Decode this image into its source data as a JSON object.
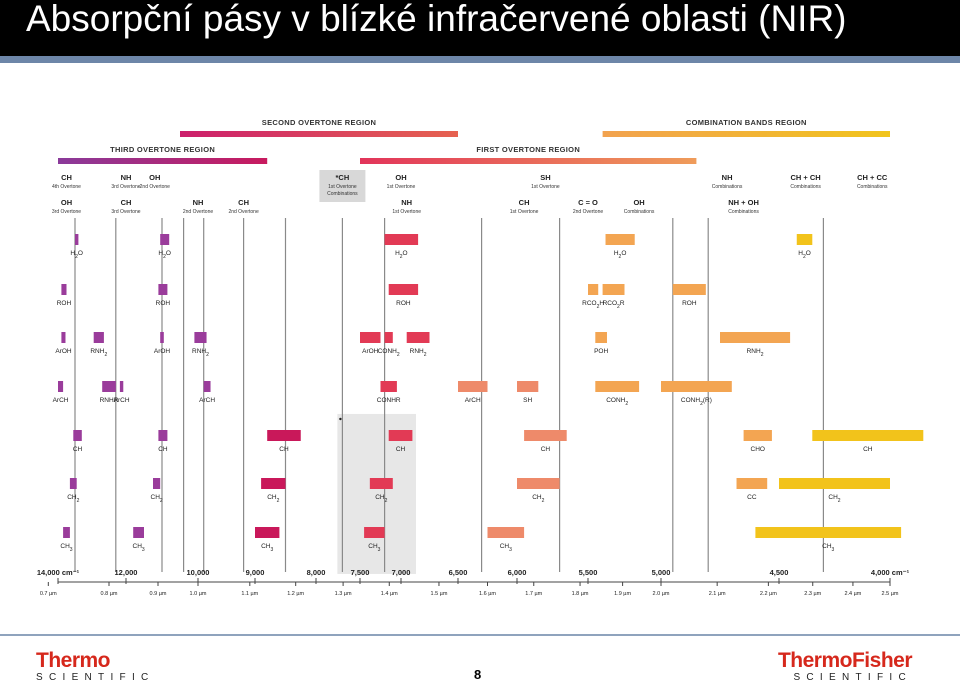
{
  "slide": {
    "title": "Absorpční pásy v blízké infračervené oblasti (NIR)",
    "page_number": "8"
  },
  "logos": {
    "left": {
      "main": "Thermo",
      "sub": "SCIENTIFIC"
    },
    "right": {
      "main": "ThermoFisher",
      "sub": "SCIENTIFIC"
    }
  },
  "colors": {
    "purple": "#9a3c9b",
    "magenta": "#c9185a",
    "red": "#e23a55",
    "salmon": "#ee8a6a",
    "orange": "#f3a552",
    "yellow": "#f2c31b"
  },
  "chart": {
    "type": "band-chart",
    "x_axis": {
      "reversed": true,
      "unit": "cm-1",
      "min": 4000,
      "max": 14000
    },
    "wavenumber_ticks": [
      {
        "v": 14000,
        "label": "14,000 cm⁻¹"
      },
      {
        "v": 12000,
        "label": "12,000"
      },
      {
        "v": 10000,
        "label": "10,000"
      },
      {
        "v": 9000,
        "label": "9,000"
      },
      {
        "v": 8000,
        "label": "8,000"
      },
      {
        "v": 7500,
        "label": "7,500"
      },
      {
        "v": 7000,
        "label": "7,000"
      },
      {
        "v": 6500,
        "label": "6,500"
      },
      {
        "v": 6000,
        "label": "6,000"
      },
      {
        "v": 5500,
        "label": "5,500"
      },
      {
        "v": 5000,
        "label": "5,000"
      },
      {
        "v": 4500,
        "label": "4,500"
      },
      {
        "v": 4000,
        "label": "4,000 cm⁻¹"
      }
    ],
    "wavelength_labels": [
      {
        "v": 14285,
        "label": "0.7 µm"
      },
      {
        "v": 12500,
        "label": "0.8 µm"
      },
      {
        "v": 11111,
        "label": "0.9 µm"
      },
      {
        "v": 10000,
        "label": "1.0 µm"
      },
      {
        "v": 9091,
        "label": "1.1 µm"
      },
      {
        "v": 8333,
        "label": "1.2 µm"
      },
      {
        "v": 7692,
        "label": "1.3 µm"
      },
      {
        "v": 7143,
        "label": "1.4 µm"
      },
      {
        "v": 6667,
        "label": "1.5 µm"
      },
      {
        "v": 6250,
        "label": "1.6 µm"
      },
      {
        "v": 5882,
        "label": "1.7 µm"
      },
      {
        "v": 5556,
        "label": "1.8 µm"
      },
      {
        "v": 5263,
        "label": "1.9 µm"
      },
      {
        "v": 5000,
        "label": "2.0 µm"
      },
      {
        "v": 4762,
        "label": "2.1 µm"
      },
      {
        "v": 4545,
        "label": "2.2 µm"
      },
      {
        "v": 4348,
        "label": "2.3 µm"
      },
      {
        "v": 4167,
        "label": "2.4 µm"
      },
      {
        "v": 4000,
        "label": "2.5 µm"
      }
    ],
    "regions": [
      {
        "label": "SECOND OVERTONE REGION",
        "from": 10500,
        "to": 6500,
        "row": 0,
        "c1": "#cc1f6c",
        "c2": "#e66250"
      },
      {
        "label": "COMBINATION BANDS REGION",
        "from": 5400,
        "to": 4000,
        "row": 0,
        "c1": "#f2a24f",
        "c2": "#f1c41c"
      },
      {
        "label": "THIRD OVERTONE REGION",
        "from": 14000,
        "to": 8800,
        "row": 1,
        "c1": "#8a3a9a",
        "c2": "#c81a5e"
      },
      {
        "label": "FIRST OVERTONE REGION",
        "from": 7500,
        "to": 4850,
        "row": 1,
        "c1": "#e2345a",
        "c2": "#ef9c5a"
      }
    ],
    "band_headers": [
      {
        "v": 13750,
        "row": 0,
        "main": "CH",
        "sub": "4th Overtone"
      },
      {
        "v": 12000,
        "row": 0,
        "main": "NH",
        "sub": "3rd Overtone"
      },
      {
        "v": 11200,
        "row": 0,
        "main": "OH",
        "sub": "2nd Overtone"
      },
      {
        "v": 7700,
        "row": 0,
        "main": "*CH",
        "sub": "1st Overtone",
        "sub2": "Combinations",
        "shaded": true
      },
      {
        "v": 7000,
        "row": 0,
        "main": "OH",
        "sub": "1st Overtone"
      },
      {
        "v": 5800,
        "row": 0,
        "main": "SH",
        "sub": "1st Overtone"
      },
      {
        "v": 4720,
        "row": 0,
        "main": "NH",
        "sub": "Combinations"
      },
      {
        "v": 4380,
        "row": 0,
        "main": "CH + CH",
        "sub": "Combinations"
      },
      {
        "v": 4080,
        "row": 0,
        "main": "CH + CC",
        "sub": "Combinations"
      },
      {
        "v": 13750,
        "row": 1,
        "main": "OH",
        "sub": "3rd Overtone"
      },
      {
        "v": 12000,
        "row": 1,
        "main": "CH",
        "sub": "3rd Overtone"
      },
      {
        "v": 10000,
        "row": 1,
        "main": "NH",
        "sub": "2nd Overtone"
      },
      {
        "v": 9200,
        "row": 1,
        "main": "CH",
        "sub": "2nd Overtone"
      },
      {
        "v": 6950,
        "row": 1,
        "main": "NH",
        "sub": "1st Overtone"
      },
      {
        "v": 5950,
        "row": 1,
        "main": "CH",
        "sub": "1st Overtone"
      },
      {
        "v": 5500,
        "row": 1,
        "main": "C = O",
        "sub": "2nd Overtone"
      },
      {
        "v": 5150,
        "row": 1,
        "main": "OH",
        "sub": "Combinations"
      },
      {
        "v": 4650,
        "row": 1,
        "main": "NH + OH",
        "sub": "Combinations"
      }
    ],
    "vlines": [
      13500,
      12300,
      11000,
      10400,
      9900,
      9200,
      8500,
      7700,
      7200,
      6300,
      5700,
      4950,
      4800,
      4300
    ],
    "shaded_band": {
      "from": 7700,
      "to": 7000,
      "row_from": 4,
      "row_to": 7
    },
    "rows": [
      [
        {
          "f": 13500,
          "t": 13400,
          "c": "purple",
          "l": "H2O"
        },
        {
          "f": 11050,
          "t": 10800,
          "c": "purple",
          "l": "H2O"
        },
        {
          "f": 7200,
          "t": 6850,
          "c": "red",
          "l": "H2O"
        },
        {
          "f": 5380,
          "t": 5180,
          "c": "orange",
          "l": "H2O"
        },
        {
          "f": 4420,
          "t": 4350,
          "c": "yellow",
          "l": "H2O"
        }
      ],
      [
        {
          "f": 13900,
          "t": 13750,
          "c": "purple",
          "l": "ROH"
        },
        {
          "f": 11100,
          "t": 10850,
          "c": "purple",
          "l": "ROH"
        },
        {
          "f": 7150,
          "t": 6850,
          "c": "red",
          "l": "ROH"
        },
        {
          "f": 5500,
          "t": 5430,
          "c": "orange",
          "l": "RCO2H"
        },
        {
          "f": 5400,
          "t": 5250,
          "c": "orange",
          "l": "RCO2R"
        },
        {
          "f": 4950,
          "t": 4810,
          "c": "orange",
          "l": "ROH"
        }
      ],
      [
        {
          "f": 13900,
          "t": 13780,
          "c": "purple",
          "l": "ArOH"
        },
        {
          "f": 12950,
          "t": 12650,
          "c": "purple",
          "l": "RNH2"
        },
        {
          "f": 11050,
          "t": 10950,
          "c": "purple",
          "l": "ArOH"
        },
        {
          "f": 10100,
          "t": 9850,
          "c": "purple",
          "l": "RNH2"
        },
        {
          "f": 7500,
          "t": 7250,
          "c": "red",
          "l": "ArOH"
        },
        {
          "f": 7200,
          "t": 7100,
          "c": "red",
          "l": "CONH2"
        },
        {
          "f": 6950,
          "t": 6750,
          "c": "red",
          "l": "RNH2"
        },
        {
          "f": 5450,
          "t": 5370,
          "c": "orange",
          "l": "POH"
        },
        {
          "f": 4750,
          "t": 4450,
          "c": "orange",
          "l": "RNH2"
        }
      ],
      [
        {
          "f": 14000,
          "t": 13850,
          "c": "purple",
          "l": "ArCH"
        },
        {
          "f": 12700,
          "t": 12300,
          "c": "purple",
          "l": "RNHR"
        },
        {
          "f": 12180,
          "t": 12080,
          "c": "purple",
          "l": "ArCH"
        },
        {
          "f": 9900,
          "t": 9780,
          "c": "purple",
          "l": "ArCH"
        },
        {
          "f": 7250,
          "t": 7050,
          "c": "red",
          "l": "CONHR"
        },
        {
          "f": 6500,
          "t": 6250,
          "c": "salmon",
          "l": "ArCH"
        },
        {
          "f": 6000,
          "t": 5850,
          "c": "salmon",
          "l": "SH"
        },
        {
          "f": 5450,
          "t": 5150,
          "c": "orange",
          "l": "CONH2"
        },
        {
          "f": 5000,
          "t": 4700,
          "c": "orange",
          "l": "CONH2(R)"
        }
      ],
      [
        {
          "f": 13550,
          "t": 13300,
          "c": "purple",
          "l": "CH"
        },
        {
          "f": 11100,
          "t": 10850,
          "c": "purple",
          "l": "CH"
        },
        {
          "f": 8800,
          "t": 8250,
          "c": "magenta",
          "l": "CH"
        },
        {
          "f": 7150,
          "t": 6900,
          "c": "red",
          "l": "CH"
        },
        {
          "f": 5950,
          "t": 5650,
          "c": "salmon",
          "l": "CH"
        },
        {
          "f": 4650,
          "t": 4530,
          "c": "orange",
          "l": "CHO"
        },
        {
          "f": 4350,
          "t": 3850,
          "c": "yellow",
          "l": "CH"
        }
      ],
      [
        {
          "f": 13650,
          "t": 13450,
          "c": "purple",
          "l": "CH2"
        },
        {
          "f": 11250,
          "t": 11050,
          "c": "purple",
          "l": "CH2"
        },
        {
          "f": 8900,
          "t": 8500,
          "c": "magenta",
          "l": "CH2"
        },
        {
          "f": 7380,
          "t": 7100,
          "c": "red",
          "l": "CH2"
        },
        {
          "f": 6000,
          "t": 5700,
          "c": "salmon",
          "l": "CH2"
        },
        {
          "f": 4680,
          "t": 4550,
          "c": "orange",
          "l": "CC"
        },
        {
          "f": 4500,
          "t": 4000,
          "c": "yellow",
          "l": "CH2"
        }
      ],
      [
        {
          "f": 13850,
          "t": 13650,
          "c": "purple",
          "l": "CH3"
        },
        {
          "f": 11800,
          "t": 11500,
          "c": "purple",
          "l": "CH3"
        },
        {
          "f": 9000,
          "t": 8600,
          "c": "magenta",
          "l": "CH3"
        },
        {
          "f": 7450,
          "t": 7200,
          "c": "red",
          "l": "CH3"
        },
        {
          "f": 6250,
          "t": 5950,
          "c": "salmon",
          "l": "CH3"
        },
        {
          "f": 4600,
          "t": 3950,
          "c": "yellow",
          "l": "CH3"
        }
      ]
    ]
  }
}
